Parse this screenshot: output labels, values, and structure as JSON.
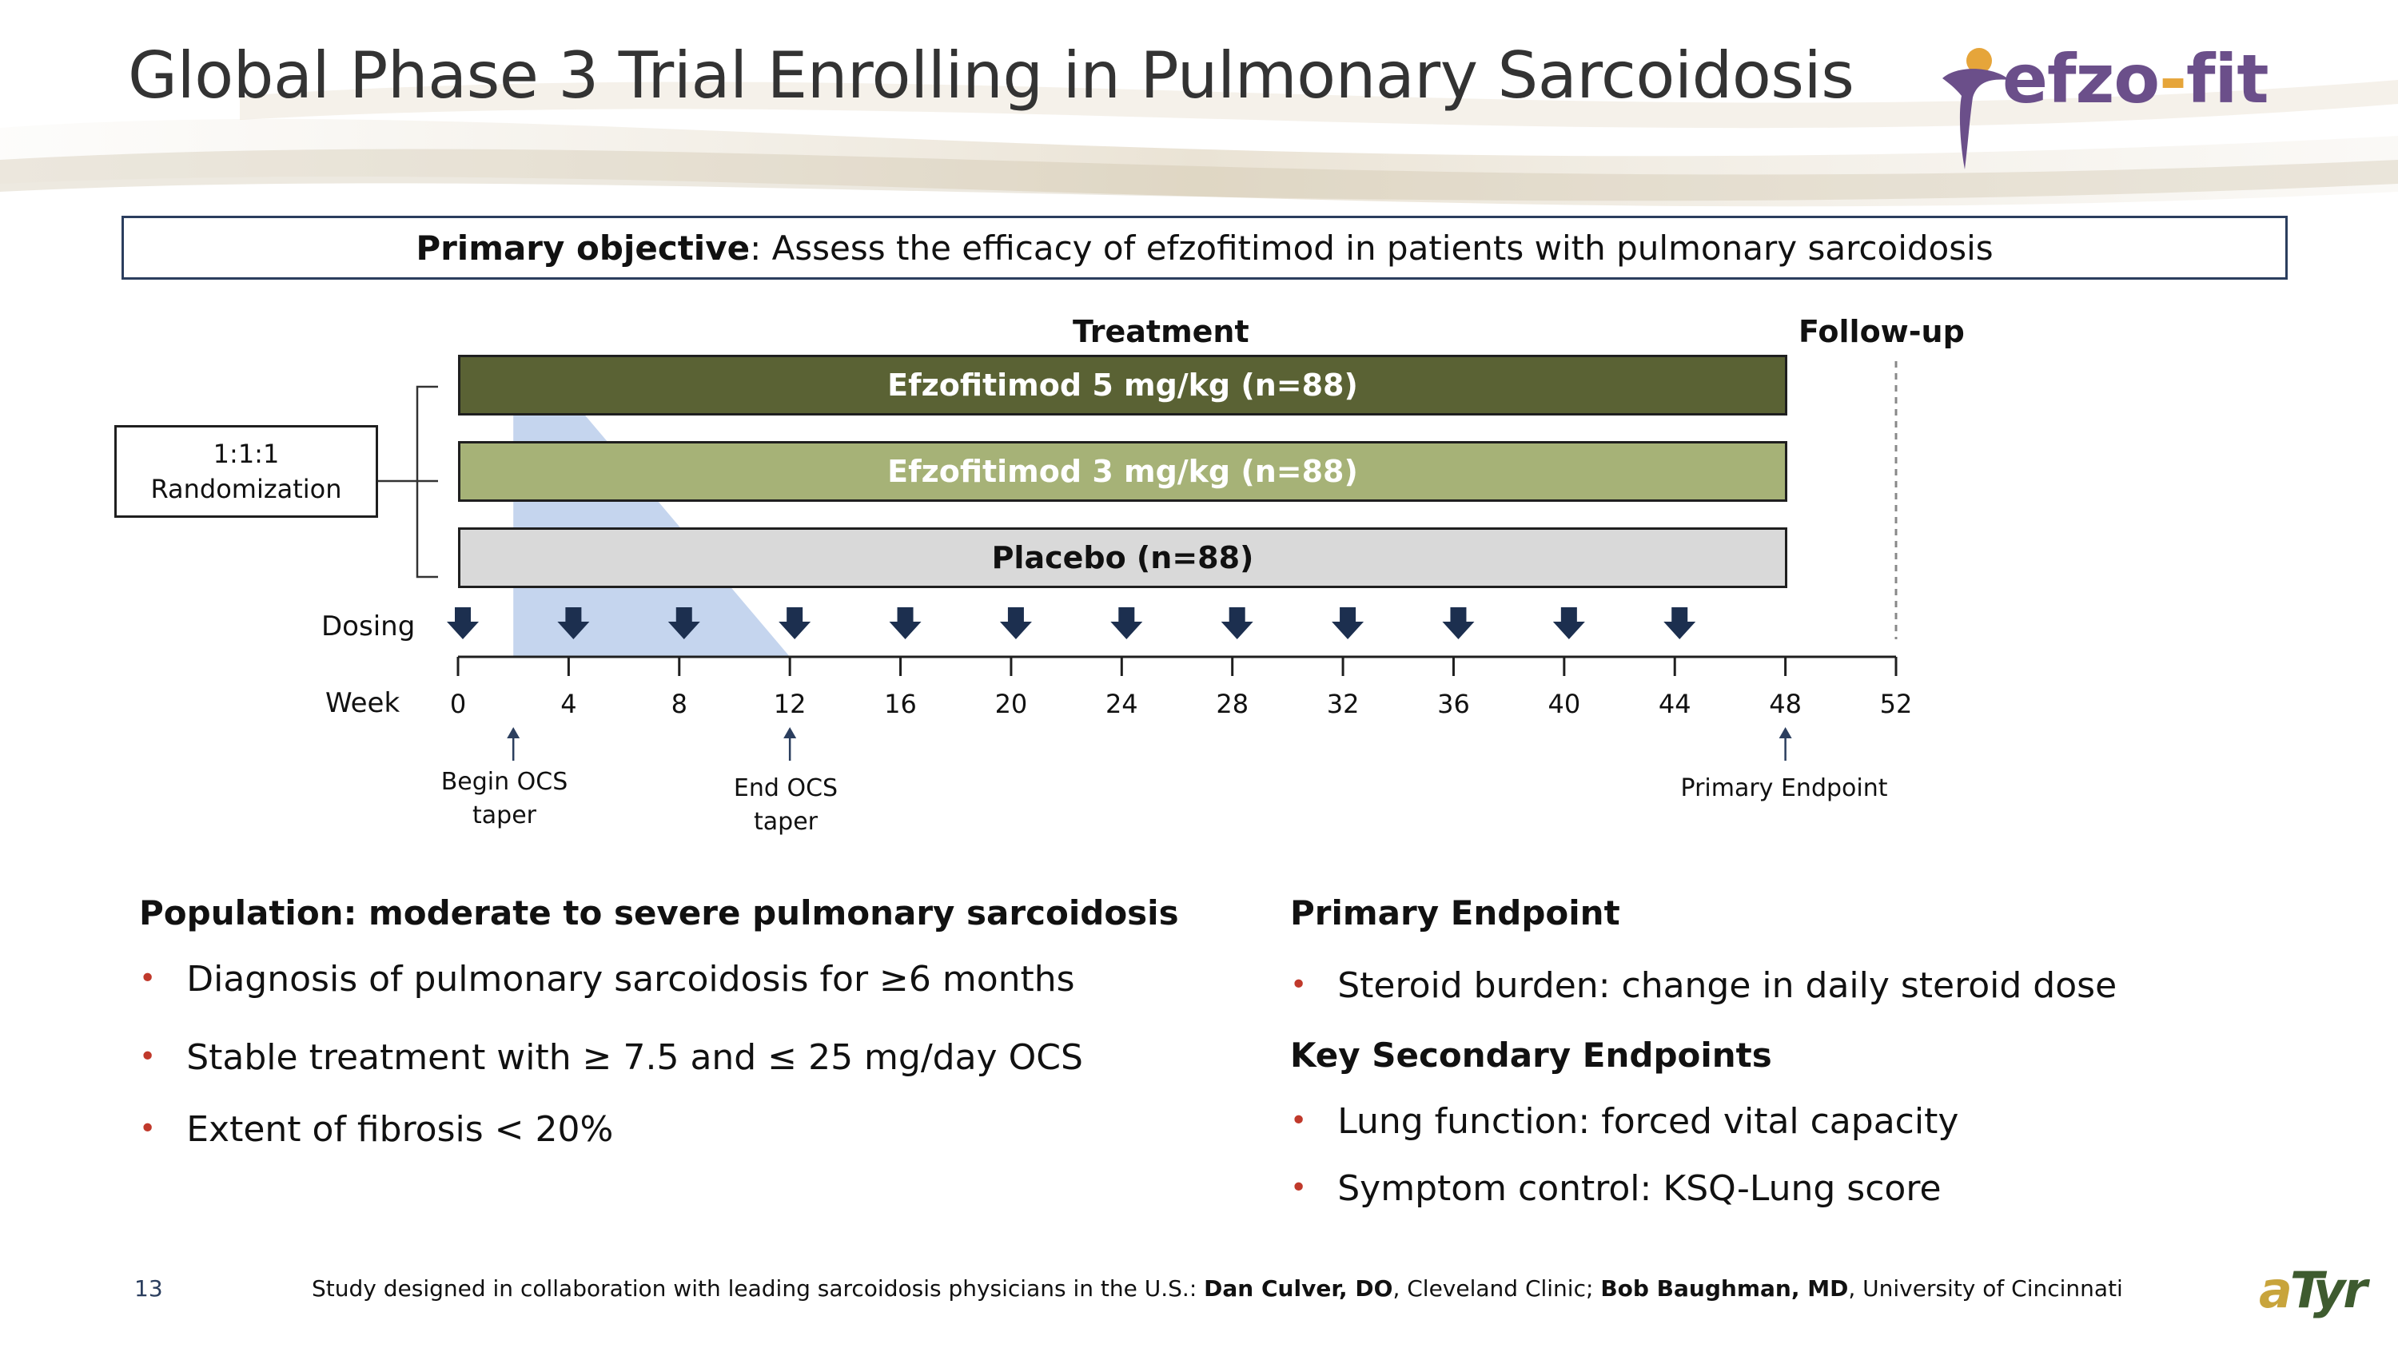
{
  "title": "Global Phase 3 Trial Enrolling in Pulmonary Sarcoidosis",
  "logo": {
    "part1": "efzo",
    "part2": "-",
    "part3": "fit",
    "icon": "efzofit-figure-logo"
  },
  "objective": {
    "label": "Primary objective",
    "text": ": Assess the efficacy of efzofitimod in patients with pulmonary sarcoidosis"
  },
  "diagram": {
    "treatment_label": "Treatment",
    "followup_label": "Follow-up",
    "arms": [
      {
        "label": "Efzofitimod 5 mg/kg (n=88)",
        "color": "#5a6234"
      },
      {
        "label": "Efzofitimod 3 mg/kg (n=88)",
        "color": "#a6b277"
      },
      {
        "label": "Placebo (n=88)",
        "color": "#d9d9d9"
      }
    ],
    "randomization": {
      "line1": "1:1:1",
      "line2": "Randomization"
    },
    "dosing_label": "Dosing",
    "week_label": "Week",
    "weeks": [
      "0",
      "4",
      "8",
      "12",
      "16",
      "20",
      "24",
      "28",
      "32",
      "36",
      "40",
      "44",
      "48",
      "52"
    ],
    "dosing_weeks": [
      0,
      4,
      8,
      12,
      16,
      20,
      24,
      28,
      32,
      36,
      40,
      44
    ],
    "ocs_taper_weeks": [
      2,
      12
    ],
    "notes": {
      "begin_ocs": {
        "line1": "Begin OCS",
        "line2": "taper"
      },
      "end_ocs": {
        "line1": "End OCS",
        "line2": "taper"
      },
      "primary_endpoint": "Primary Endpoint"
    },
    "colors": {
      "taper": "#c5d5ee",
      "arrow": "#1c2f4f"
    }
  },
  "population": {
    "heading": "Population: moderate to severe pulmonary sarcoidosis",
    "bullets": [
      "Diagnosis of pulmonary sarcoidosis for ≥6 months",
      "Stable treatment with ≥ 7.5 and ≤ 25 mg/day OCS",
      "Extent of fibrosis < 20%"
    ]
  },
  "endpoints": {
    "primary_heading": "Primary Endpoint",
    "primary_bullets": [
      "Steroid burden: change in daily steroid dose"
    ],
    "secondary_heading": "Key Secondary Endpoints",
    "secondary_bullets": [
      "Lung function: forced vital capacity",
      "Symptom control: KSQ-Lung score"
    ]
  },
  "footer": {
    "page_number": "13",
    "prefix": "Study designed in collaboration with leading sarcoidosis physicians in the U.S.: ",
    "name1": "Dan Culver, DO",
    "mid": ", Cleveland Clinic; ",
    "name2": "Bob Baughman, MD",
    "suffix": ", University of Cincinnati"
  },
  "atyr_logo": {
    "a": "a",
    "t": "Tyr"
  }
}
